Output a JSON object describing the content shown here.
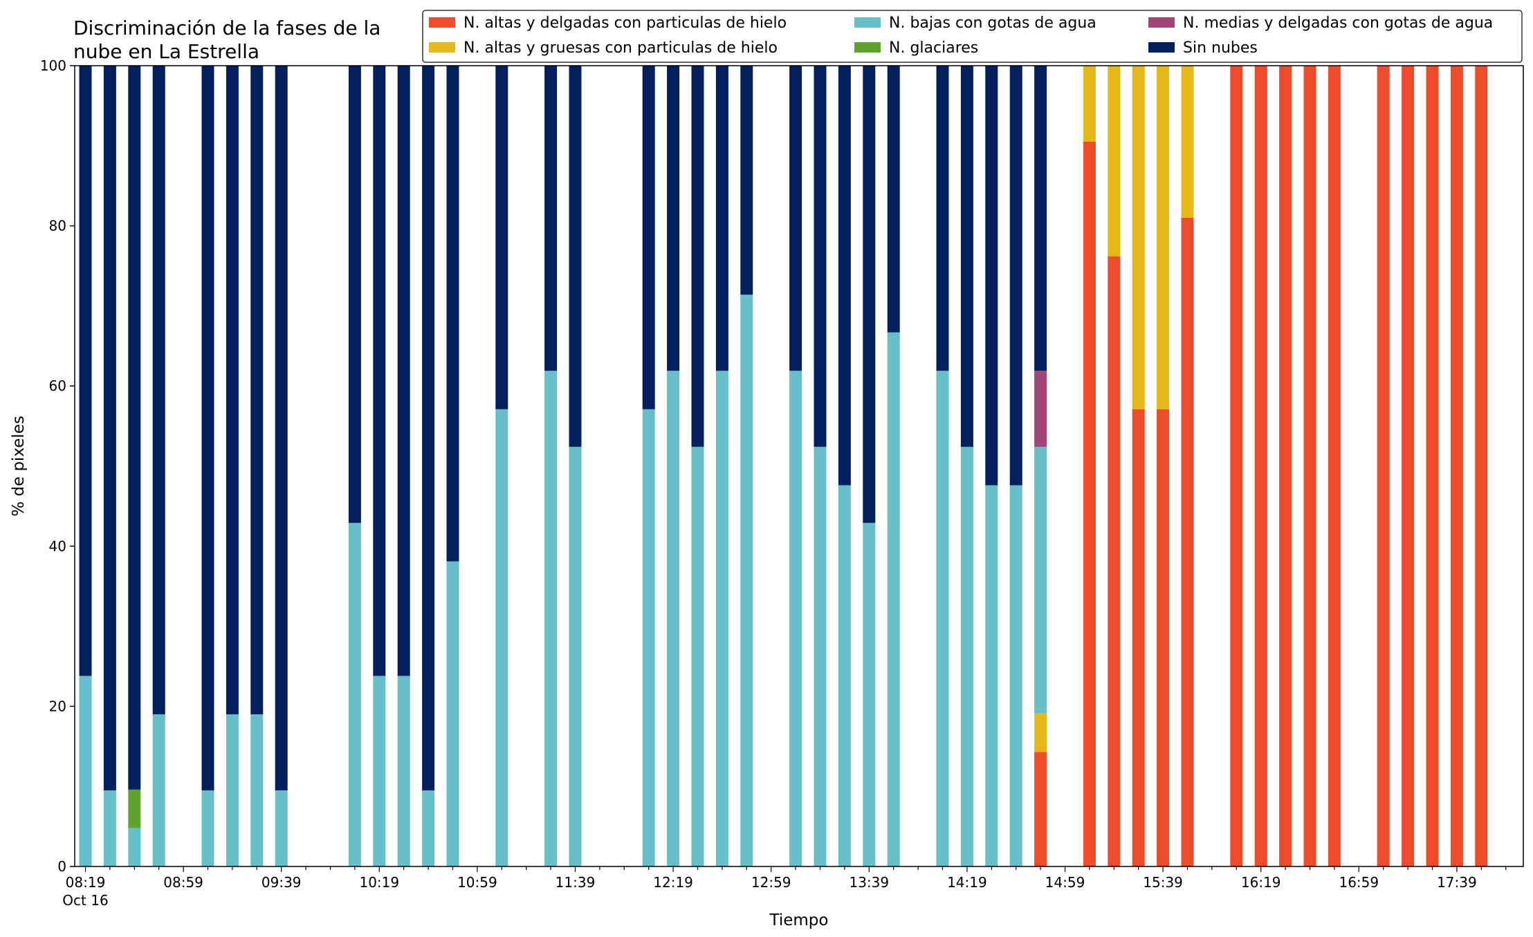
{
  "chart_data": {
    "type": "bar",
    "stacked": true,
    "title_lines": [
      "Discriminación de la fases de la",
      "nube en La Estrella"
    ],
    "xlabel": "Tiempo",
    "ylabel": "% de pixeles",
    "ylim": [
      0,
      100
    ],
    "yticks": [
      0,
      20,
      40,
      60,
      80,
      100
    ],
    "grid": false,
    "legend_position": "top-right",
    "x_start": "08:19",
    "x_end": "17:59",
    "x_step_minutes": 10,
    "xtick_labels": [
      {
        "time": "08:19",
        "label": "08:19",
        "sublabel": "Oct 16"
      },
      {
        "time": "08:59",
        "label": "08:59"
      },
      {
        "time": "09:39",
        "label": "09:39"
      },
      {
        "time": "10:19",
        "label": "10:19"
      },
      {
        "time": "10:59",
        "label": "10:59"
      },
      {
        "time": "11:39",
        "label": "11:39"
      },
      {
        "time": "12:19",
        "label": "12:19"
      },
      {
        "time": "12:59",
        "label": "12:59"
      },
      {
        "time": "13:39",
        "label": "13:39"
      },
      {
        "time": "14:19",
        "label": "14:19"
      },
      {
        "time": "14:59",
        "label": "14:59"
      },
      {
        "time": "15:39",
        "label": "15:39"
      },
      {
        "time": "16:19",
        "label": "16:19"
      },
      {
        "time": "16:59",
        "label": "16:59"
      },
      {
        "time": "17:39",
        "label": "17:39"
      }
    ],
    "series": [
      {
        "name": "N. altas y delgadas con particulas de hielo",
        "color": "#ee4b2b"
      },
      {
        "name": "N. altas y gruesas con particulas de hielo",
        "color": "#e6b817"
      },
      {
        "name": "N. bajas con gotas de agua",
        "color": "#67bfca"
      },
      {
        "name": "N. glaciares",
        "color": "#5fa22e"
      },
      {
        "name": "N. medias y delgadas con gotas de agua",
        "color": "#a24577"
      },
      {
        "name": "Sin nubes",
        "color": "#03205e"
      }
    ],
    "bars": [
      {
        "time": "08:19",
        "values": [
          0,
          0,
          23.8,
          0,
          0,
          76.2
        ]
      },
      {
        "time": "08:29",
        "values": [
          0,
          0,
          9.5,
          0,
          0,
          90.5
        ]
      },
      {
        "time": "08:39",
        "values": [
          0,
          0,
          4.8,
          4.8,
          0,
          90.4
        ]
      },
      {
        "time": "08:49",
        "values": [
          0,
          0,
          19.0,
          0,
          0,
          81.0
        ]
      },
      {
        "time": "09:09",
        "values": [
          0,
          0,
          9.5,
          0,
          0,
          90.5
        ]
      },
      {
        "time": "09:19",
        "values": [
          0,
          0,
          19.0,
          0,
          0,
          81.0
        ]
      },
      {
        "time": "09:29",
        "values": [
          0,
          0,
          19.0,
          0,
          0,
          81.0
        ]
      },
      {
        "time": "09:39",
        "values": [
          0,
          0,
          9.5,
          0,
          0,
          90.5
        ]
      },
      {
        "time": "10:09",
        "values": [
          0,
          0,
          42.9,
          0,
          0,
          57.1
        ]
      },
      {
        "time": "10:19",
        "values": [
          0,
          0,
          23.8,
          0,
          0,
          76.2
        ]
      },
      {
        "time": "10:29",
        "values": [
          0,
          0,
          23.8,
          0,
          0,
          76.2
        ]
      },
      {
        "time": "10:39",
        "values": [
          0,
          0,
          9.5,
          0,
          0,
          90.5
        ]
      },
      {
        "time": "10:49",
        "values": [
          0,
          0,
          38.1,
          0,
          0,
          61.9
        ]
      },
      {
        "time": "11:09",
        "values": [
          0,
          0,
          57.1,
          0,
          0,
          42.9
        ]
      },
      {
        "time": "11:29",
        "values": [
          0,
          0,
          61.9,
          0,
          0,
          38.1
        ]
      },
      {
        "time": "11:39",
        "values": [
          0,
          0,
          52.4,
          0,
          0,
          47.6
        ]
      },
      {
        "time": "12:09",
        "values": [
          0,
          0,
          57.1,
          0,
          0,
          42.9
        ]
      },
      {
        "time": "12:19",
        "values": [
          0,
          0,
          61.9,
          0,
          0,
          38.1
        ]
      },
      {
        "time": "12:29",
        "values": [
          0,
          0,
          52.4,
          0,
          0,
          47.6
        ]
      },
      {
        "time": "12:39",
        "values": [
          0,
          0,
          61.9,
          0,
          0,
          38.1
        ]
      },
      {
        "time": "12:49",
        "values": [
          0,
          0,
          71.4,
          0,
          0,
          28.6
        ]
      },
      {
        "time": "13:09",
        "values": [
          0,
          0,
          61.9,
          0,
          0,
          38.1
        ]
      },
      {
        "time": "13:19",
        "values": [
          0,
          0,
          52.4,
          0,
          0,
          47.6
        ]
      },
      {
        "time": "13:29",
        "values": [
          0,
          0,
          47.6,
          0,
          0,
          52.4
        ]
      },
      {
        "time": "13:39",
        "values": [
          0,
          0,
          42.9,
          0,
          0,
          57.1
        ]
      },
      {
        "time": "13:49",
        "values": [
          0,
          0,
          66.7,
          0,
          0,
          33.3
        ]
      },
      {
        "time": "14:09",
        "values": [
          0,
          0,
          61.9,
          0,
          0,
          38.1
        ]
      },
      {
        "time": "14:19",
        "values": [
          0,
          0,
          52.4,
          0,
          0,
          47.6
        ]
      },
      {
        "time": "14:29",
        "values": [
          0,
          0,
          47.6,
          0,
          0,
          52.4
        ]
      },
      {
        "time": "14:39",
        "values": [
          0,
          0,
          47.6,
          0,
          0,
          52.4
        ]
      },
      {
        "time": "14:49",
        "values": [
          14.3,
          4.8,
          33.3,
          0,
          9.5,
          38.1
        ]
      },
      {
        "time": "15:09",
        "values": [
          90.5,
          9.5,
          0,
          0,
          0,
          0
        ]
      },
      {
        "time": "15:19",
        "values": [
          76.2,
          23.8,
          0,
          0,
          0,
          0
        ]
      },
      {
        "time": "15:29",
        "values": [
          57.1,
          42.9,
          0,
          0,
          0,
          0
        ]
      },
      {
        "time": "15:39",
        "values": [
          57.1,
          42.9,
          0,
          0,
          0,
          0
        ]
      },
      {
        "time": "15:49",
        "values": [
          81.0,
          19.0,
          0,
          0,
          0,
          0
        ]
      },
      {
        "time": "16:09",
        "values": [
          100,
          0,
          0,
          0,
          0,
          0
        ]
      },
      {
        "time": "16:19",
        "values": [
          100,
          0,
          0,
          0,
          0,
          0
        ]
      },
      {
        "time": "16:29",
        "values": [
          100,
          0,
          0,
          0,
          0,
          0
        ]
      },
      {
        "time": "16:39",
        "values": [
          100,
          0,
          0,
          0,
          0,
          0
        ]
      },
      {
        "time": "16:49",
        "values": [
          100,
          0,
          0,
          0,
          0,
          0
        ]
      },
      {
        "time": "17:09",
        "values": [
          100,
          0,
          0,
          0,
          0,
          0
        ]
      },
      {
        "time": "17:19",
        "values": [
          100,
          0,
          0,
          0,
          0,
          0
        ]
      },
      {
        "time": "17:29",
        "values": [
          100,
          0,
          0,
          0,
          0,
          0
        ]
      },
      {
        "time": "17:39",
        "values": [
          100,
          0,
          0,
          0,
          0,
          0
        ]
      },
      {
        "time": "17:49",
        "values": [
          100,
          0,
          0,
          0,
          0,
          0
        ]
      }
    ]
  }
}
